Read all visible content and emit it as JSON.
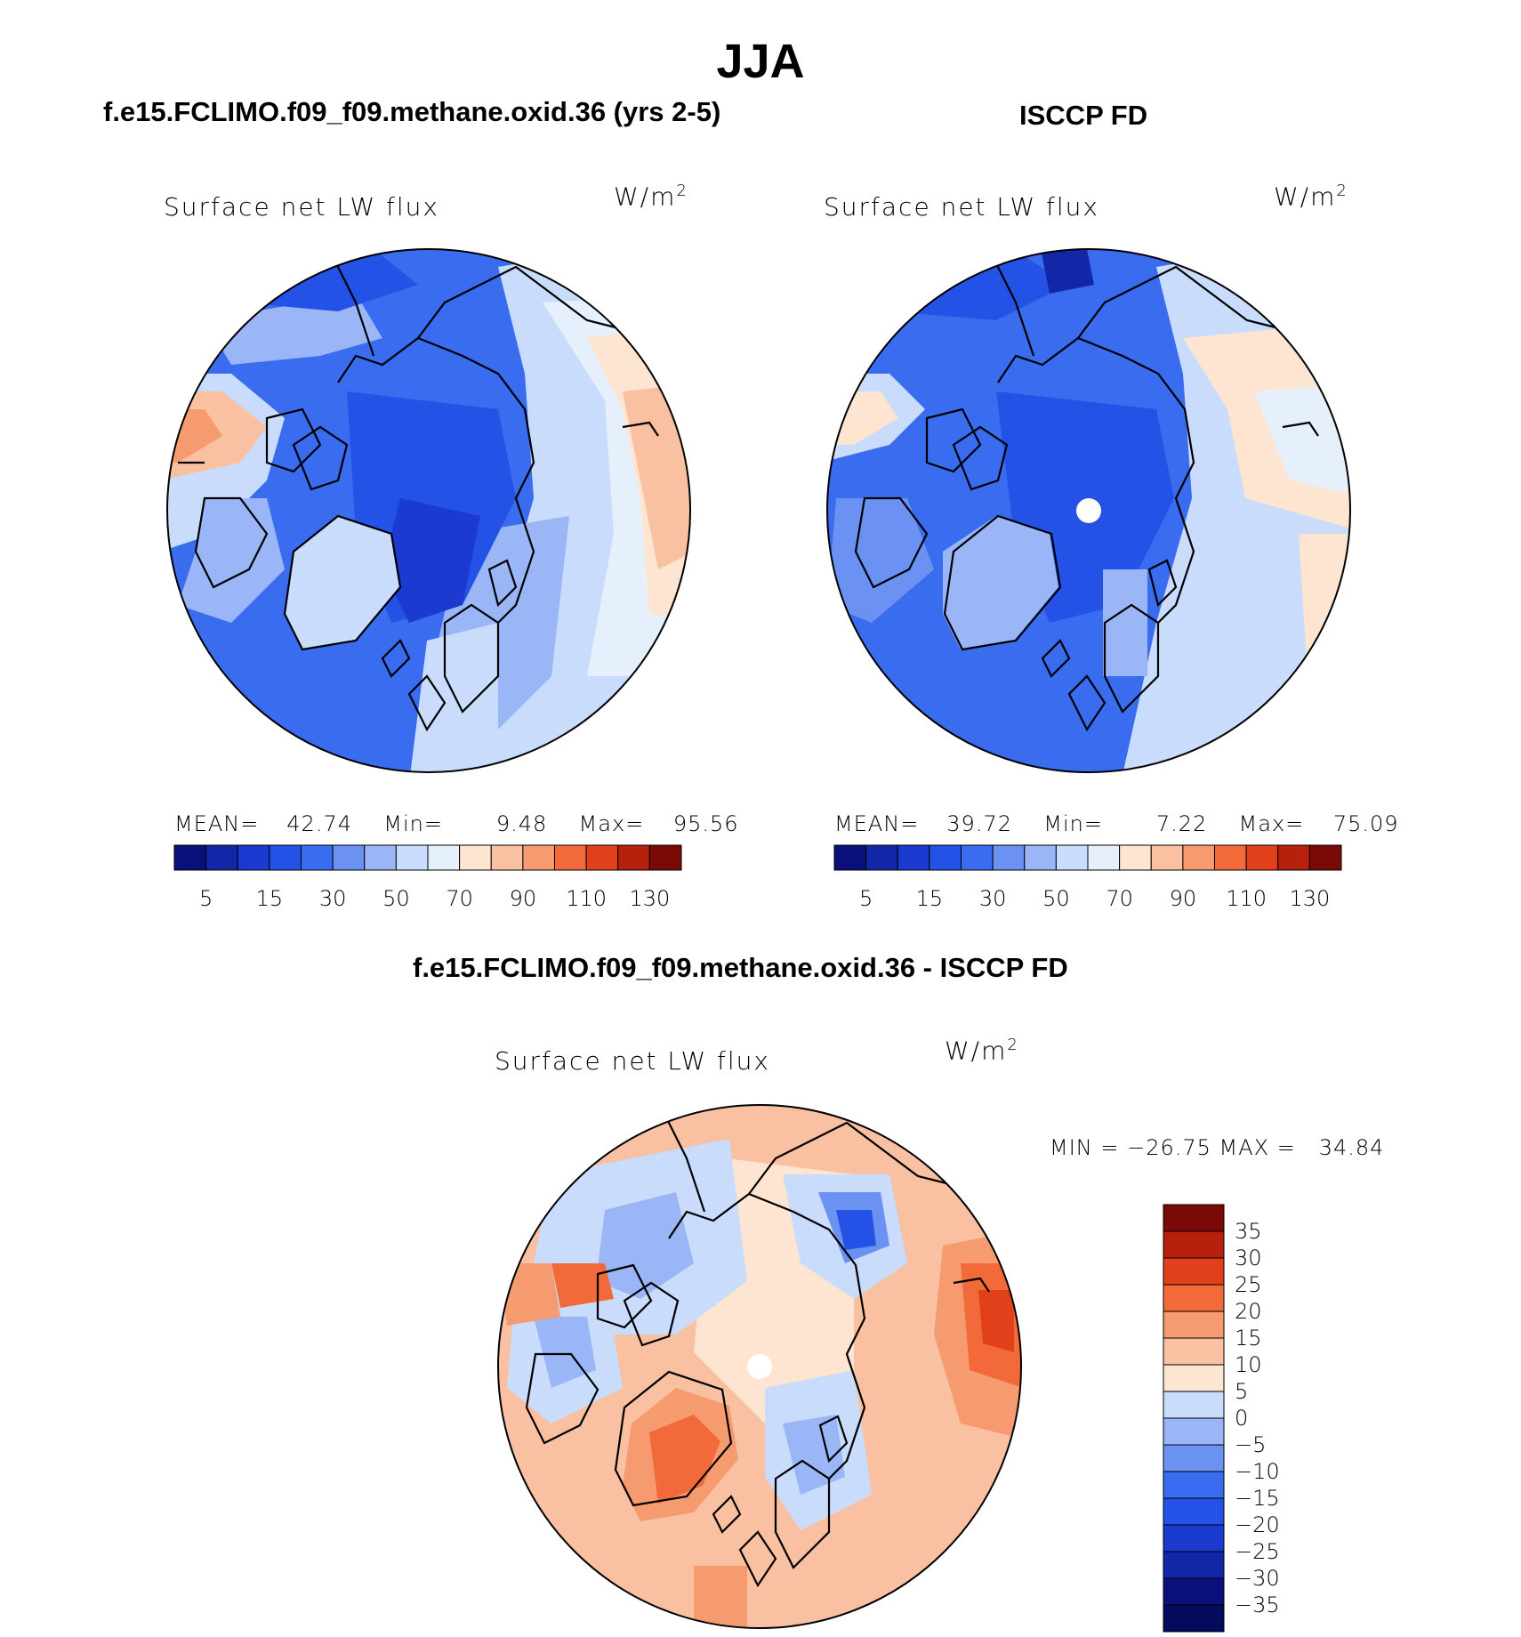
{
  "main_title": "JJA",
  "panels": [
    {
      "title": "f.e15.FCLIMO.f09_f09.methane.oxid.36 (yrs 2-5)",
      "variable": "Surface net LW flux",
      "units_base": "W/m",
      "units_exp": "2",
      "mean_label": "MEAN=",
      "mean": "42.74",
      "min_label": "Min=",
      "min": "9.48",
      "max_label": "Max=",
      "max": "95.56"
    },
    {
      "title": "ISCCP FD",
      "variable": "Surface net LW flux",
      "units_base": "W/m",
      "units_exp": "2",
      "mean_label": "MEAN=",
      "mean": "39.72",
      "min_label": "Min=",
      "min": "7.22",
      "max_label": "Max=",
      "max": "75.09"
    }
  ],
  "diff_panel": {
    "title": "f.e15.FCLIMO.f09_f09.methane.oxid.36 - ISCCP FD",
    "variable": "Surface net LW flux",
    "units_base": "W/m",
    "units_exp": "2",
    "minmax_text": "MIN = −26.75 MAX =   34.84"
  },
  "chart_data": [
    {
      "type": "heatmap",
      "projection": "north-polar-stereographic",
      "title": "f.e15.FCLIMO.f09_f09.methane.oxid.36 (yrs 2-5)",
      "variable": "Surface net LW flux",
      "units": "W/m2",
      "mean": 42.74,
      "min": 9.48,
      "max": 95.56,
      "colorbar_levels": [
        5,
        10,
        15,
        20,
        30,
        40,
        50,
        60,
        70,
        80,
        90,
        100,
        110,
        120,
        130
      ],
      "colorbar_tick_labels": [
        "5",
        "15",
        "30",
        "50",
        "70",
        "90",
        "110",
        "130"
      ],
      "colors": [
        "#0a0f7a",
        "#1226a8",
        "#1a3ad0",
        "#2452e6",
        "#3a6cf0",
        "#6b91f2",
        "#9ab6f7",
        "#c9dcfb",
        "#e6f0fd",
        "#fde5d2",
        "#fac0a2",
        "#f69a70",
        "#f26a3a",
        "#e2401a",
        "#b8200e",
        "#7a0a06"
      ]
    },
    {
      "type": "heatmap",
      "projection": "north-polar-stereographic",
      "title": "ISCCP FD",
      "variable": "Surface net LW flux",
      "units": "W/m2",
      "mean": 39.72,
      "min": 7.22,
      "max": 75.09,
      "colorbar_levels": [
        5,
        10,
        15,
        20,
        30,
        40,
        50,
        60,
        70,
        80,
        90,
        100,
        110,
        120,
        130
      ],
      "colorbar_tick_labels": [
        "5",
        "15",
        "30",
        "50",
        "70",
        "90",
        "110",
        "130"
      ],
      "colors": [
        "#0a0f7a",
        "#1226a8",
        "#1a3ad0",
        "#2452e6",
        "#3a6cf0",
        "#6b91f2",
        "#9ab6f7",
        "#c9dcfb",
        "#e6f0fd",
        "#fde5d2",
        "#fac0a2",
        "#f69a70",
        "#f26a3a",
        "#e2401a",
        "#b8200e",
        "#7a0a06"
      ]
    },
    {
      "type": "heatmap",
      "projection": "north-polar-stereographic",
      "title": "f.e15.FCLIMO.f09_f09.methane.oxid.36 - ISCCP FD",
      "variable": "Surface net LW flux",
      "units": "W/m2",
      "min": -26.75,
      "max": 34.84,
      "colorbar_orientation": "vertical",
      "colorbar_tick_labels": [
        "35",
        "30",
        "25",
        "20",
        "15",
        "10",
        "5",
        "0",
        "−5",
        "−10",
        "−15",
        "−20",
        "−25",
        "−30",
        "−35"
      ],
      "colors": [
        "#7a0a06",
        "#b8200e",
        "#e2401a",
        "#f26a3a",
        "#f69a70",
        "#fac0a2",
        "#fde5d2",
        "#c9dcfb",
        "#9ab6f7",
        "#6b91f2",
        "#3a6cf0",
        "#2452e6",
        "#1a3ad0",
        "#1226a8",
        "#0a0f7a",
        "#050a5a"
      ]
    }
  ]
}
